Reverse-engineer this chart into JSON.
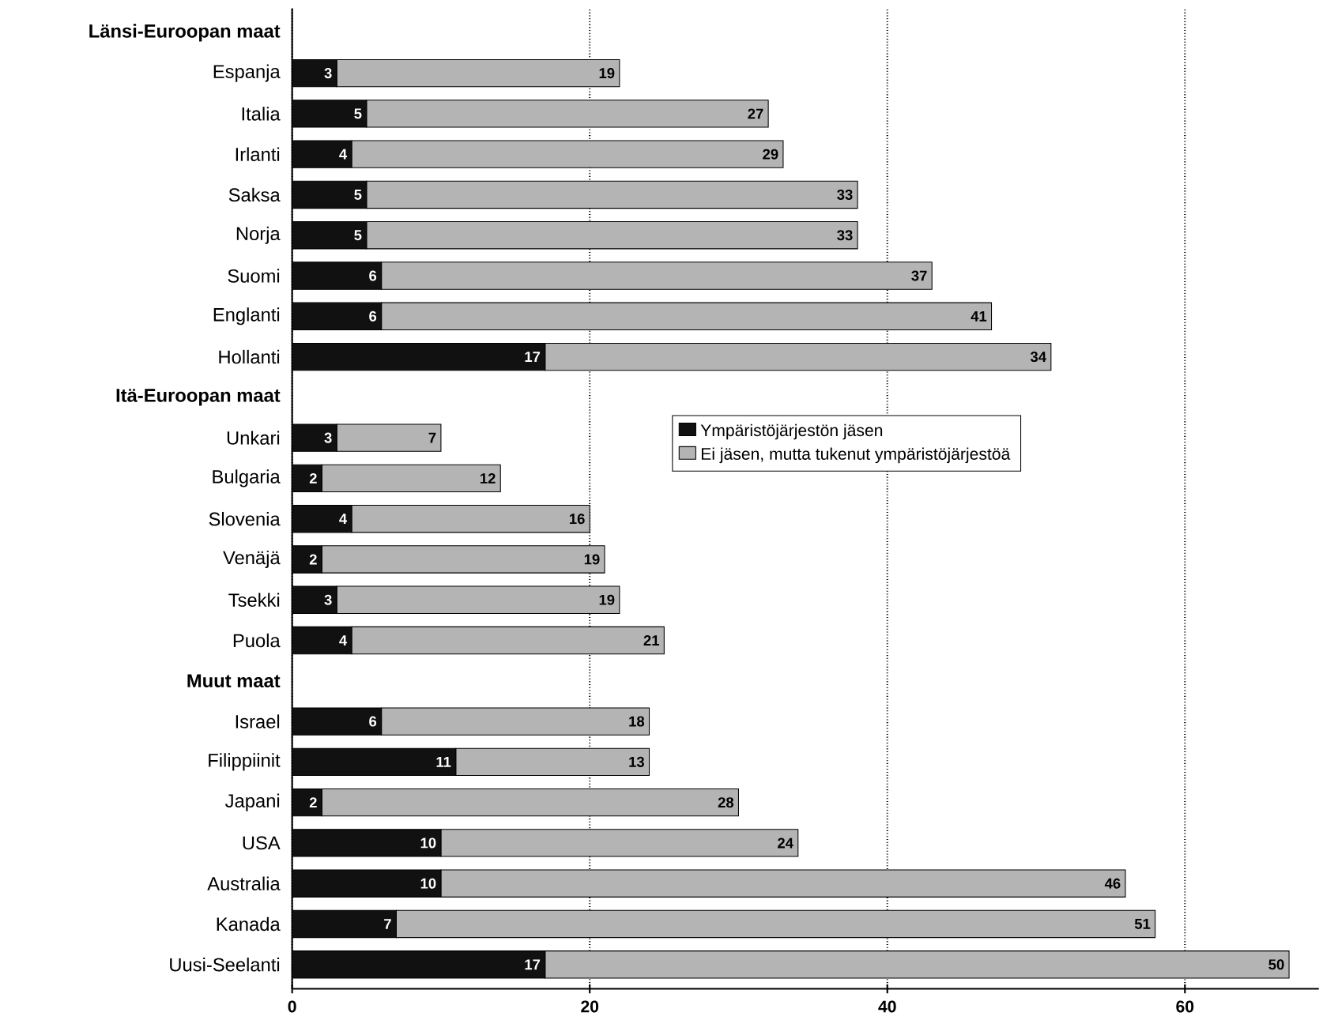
{
  "chart_data": {
    "type": "bar",
    "orientation": "horizontal",
    "stacked": true,
    "categories": [
      "Länsi-Euroopan maat",
      "Espanja",
      "Italia",
      "Irlanti",
      "Saksa",
      "Norja",
      "Suomi",
      "Englanti",
      "Hollanti",
      "Itä-Euroopan maat",
      "Unkari",
      "Bulgaria",
      "Slovenia",
      "Venäjä",
      "Tsekki",
      "Puola",
      "Muut maat",
      "Israel",
      "Filippiinit",
      "Japani",
      "USA",
      "Australia",
      "Kanada",
      "Uusi-Seelanti"
    ],
    "series": [
      {
        "name": "Ympäristöjärjestön jäsen",
        "color": "#111111",
        "values": [
          null,
          3,
          5,
          4,
          5,
          5,
          6,
          6,
          17,
          null,
          3,
          2,
          4,
          2,
          3,
          4,
          null,
          6,
          11,
          2,
          10,
          10,
          7,
          17
        ]
      },
      {
        "name": "Ei jäsen, mutta tukenut ympäristöjärjestöä",
        "color": "#b4b4b4",
        "values": [
          null,
          19,
          27,
          29,
          33,
          33,
          37,
          41,
          34,
          null,
          7,
          12,
          16,
          19,
          19,
          21,
          null,
          18,
          13,
          28,
          24,
          46,
          51,
          50
        ]
      }
    ],
    "xlim": [
      0,
      69
    ],
    "xticks": [
      0,
      20,
      40,
      60
    ],
    "grid": "x",
    "legend": "right",
    "data_labels": true
  }
}
